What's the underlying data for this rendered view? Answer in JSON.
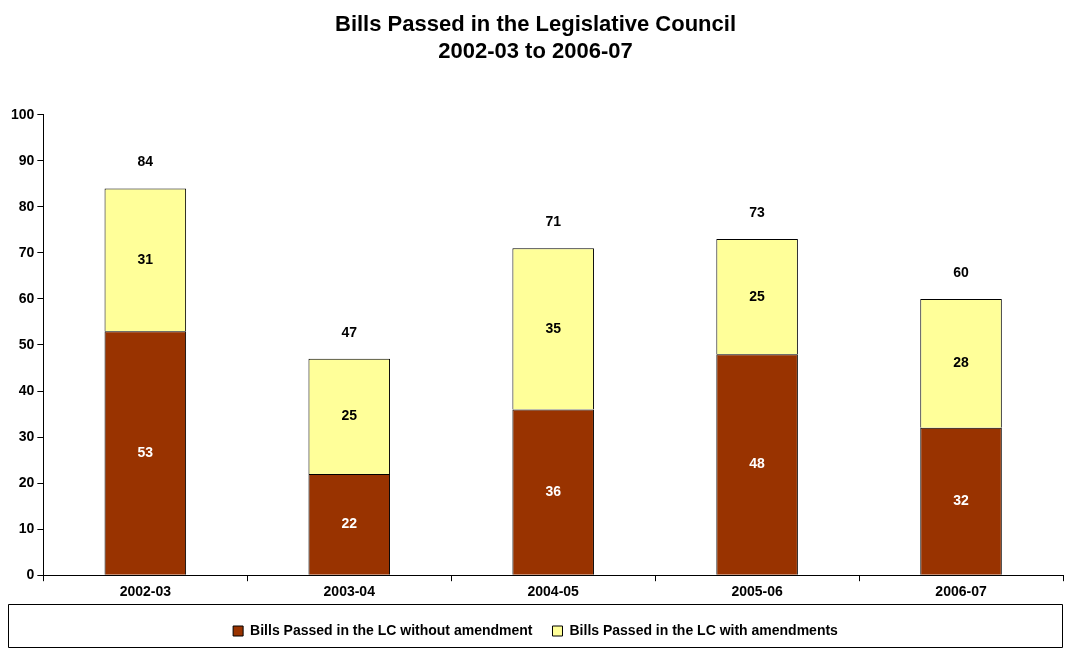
{
  "chart_data": {
    "type": "bar",
    "title": [
      "Bills Passed in the Legislative Council",
      "2002-03 to 2006-07"
    ],
    "categories": [
      "2002-03",
      "2003-04",
      "2004-05",
      "2005-06",
      "2006-07"
    ],
    "stacked": true,
    "series": [
      {
        "name": "Bills Passed in the LC without amendment",
        "color": "#993300",
        "values": [
          53,
          22,
          36,
          48,
          32
        ]
      },
      {
        "name": "Bills Passed in the LC with amendments",
        "color": "#ffff99",
        "values": [
          31,
          25,
          35,
          25,
          28
        ]
      }
    ],
    "totals": [
      "84",
      "47",
      "71",
      "73",
      "60"
    ],
    "data_labels": true,
    "ylim": [
      0,
      100
    ],
    "yticks": [
      0,
      10,
      20,
      30,
      40,
      50,
      60,
      70,
      80,
      90,
      100
    ],
    "legend": "bottom"
  }
}
